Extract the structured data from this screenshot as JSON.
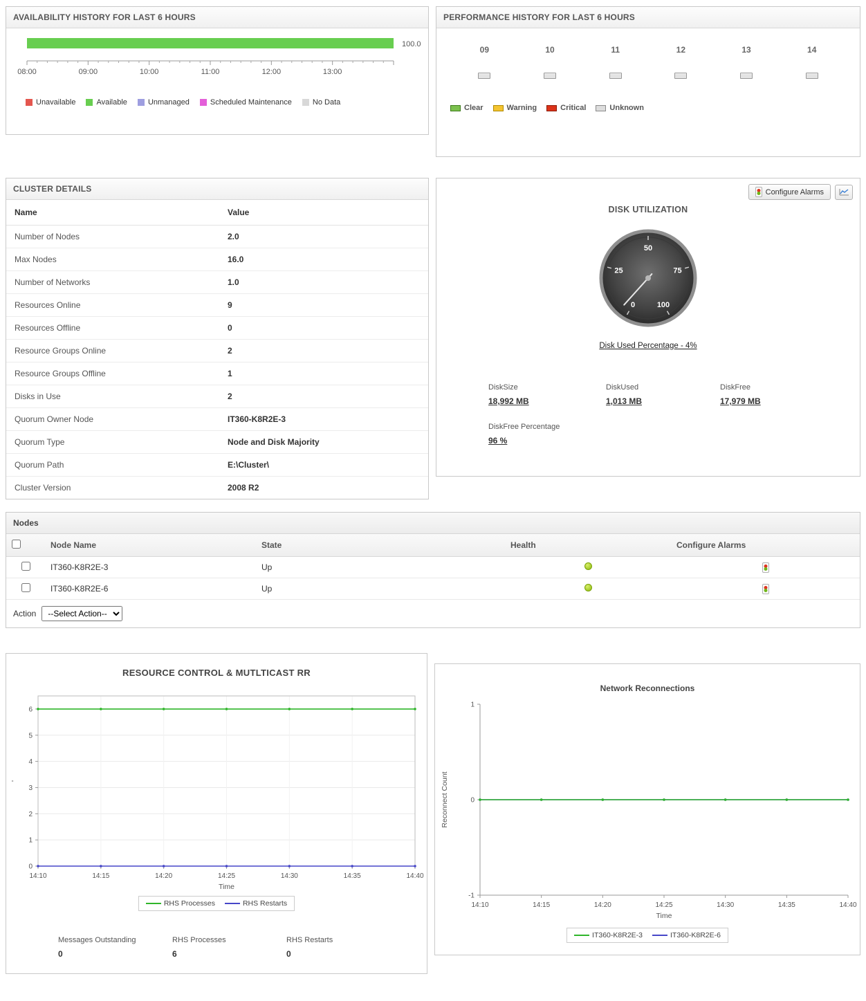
{
  "panels": {
    "cluster": {
      "title": "CLUSTER DETAILS",
      "columns": [
        "Name",
        "Value"
      ],
      "rows": [
        {
          "name": "Number of Nodes",
          "value": "2.0"
        },
        {
          "name": "Max Nodes",
          "value": "16.0"
        },
        {
          "name": "Number of Networks",
          "value": "1.0"
        },
        {
          "name": "Resources Online",
          "value": "9"
        },
        {
          "name": "Resources Offline",
          "value": "0"
        },
        {
          "name": "Resource Groups Online",
          "value": "2"
        },
        {
          "name": "Resource Groups Offline",
          "value": "1"
        },
        {
          "name": "Disks in Use",
          "value": "2"
        },
        {
          "name": "Quorum Owner Node",
          "value": "IT360-K8R2E-3"
        },
        {
          "name": "Quorum Type",
          "value": "Node and Disk Majority"
        },
        {
          "name": "Quorum Path",
          "value": "E:\\Cluster\\"
        },
        {
          "name": "Cluster Version",
          "value": "2008 R2"
        }
      ]
    },
    "disk": {
      "configure_alarms_label": "Configure Alarms",
      "stats": [
        {
          "label": "DiskSize",
          "value": "18,992 MB"
        },
        {
          "label": "DiskUsed",
          "value": "1,013 MB"
        },
        {
          "label": "DiskFree",
          "value": "17,979 MB"
        },
        {
          "label": "DiskFree Percentage",
          "value": "96 %"
        }
      ]
    },
    "nodes": {
      "title": "Nodes",
      "columns": [
        "Node Name",
        "State",
        "Health",
        "Configure Alarms"
      ],
      "rows": [
        {
          "name": "IT360-K8R2E-3",
          "state": "Up",
          "health": "up"
        },
        {
          "name": "IT360-K8R2E-6",
          "state": "Up",
          "health": "up"
        }
      ],
      "action_label": "Action",
      "action_selected": "--Select Action--"
    },
    "resource": {
      "stats": [
        {
          "label": "Messages Outstanding",
          "value": "0"
        },
        {
          "label": "RHS Processes",
          "value": "6"
        },
        {
          "label": "RHS Restarts",
          "value": "0"
        }
      ]
    }
  },
  "chart_data": [
    {
      "id": "availability",
      "type": "bar",
      "title": "AVAILABILITY HISTORY FOR LAST 6 HOURS",
      "orientation": "horizontal",
      "series": [
        {
          "name": "Available",
          "value": 100.0
        }
      ],
      "value_label": "100.0",
      "bar_color": "#68ce50",
      "x_ticks": [
        "08:00",
        "09:00",
        "10:00",
        "11:00",
        "12:00",
        "13:00"
      ],
      "x_range_hours": 6,
      "legend": [
        {
          "label": "Unavailable",
          "color": "#e4564e"
        },
        {
          "label": "Available",
          "color": "#68ce50"
        },
        {
          "label": "Unmanaged",
          "color": "#9e9ee0"
        },
        {
          "label": "Scheduled Maintenance",
          "color": "#e45fd9"
        },
        {
          "label": "No Data",
          "color": "#d8d8d8"
        }
      ]
    },
    {
      "id": "performance",
      "type": "heatmap",
      "title": "PERFORMANCE HISTORY FOR LAST 6 HOURS",
      "hours": [
        "09",
        "10",
        "11",
        "12",
        "13",
        "14"
      ],
      "cells": [
        "unknown",
        "unknown",
        "unknown",
        "unknown",
        "unknown",
        "unknown"
      ],
      "legend": [
        {
          "label": "Clear",
          "color": "#7cc14e",
          "border": "#3c7a1a"
        },
        {
          "label": "Warning",
          "color": "#f4c430",
          "border": "#b08900"
        },
        {
          "label": "Critical",
          "color": "#dc3319",
          "border": "#8c1a08"
        },
        {
          "label": "Unknown",
          "color": "#dddddd",
          "border": "#8a8a8a"
        }
      ]
    },
    {
      "id": "disk-gauge",
      "type": "gauge",
      "title": "DISK UTILIZATION",
      "value": 4,
      "min": 0,
      "max": 100,
      "ticks": [
        0,
        25,
        50,
        75,
        100
      ],
      "caption": "Disk Used Percentage - 4%"
    },
    {
      "id": "resource",
      "type": "line",
      "title": "RESOURCE CONTROL & MUTLTICAST RR",
      "xlabel": "Time",
      "ylabel": "'",
      "ylim": [
        0,
        6.5
      ],
      "yticks": [
        0,
        1,
        2,
        3,
        4,
        5,
        6
      ],
      "x": [
        "14:10",
        "14:15",
        "14:20",
        "14:25",
        "14:30",
        "14:35",
        "14:40"
      ],
      "series": [
        {
          "name": "RHS Processes",
          "color": "#2fb52a",
          "values": [
            6,
            6,
            6,
            6,
            6,
            6,
            6
          ]
        },
        {
          "name": "RHS Restarts",
          "color": "#4646c8",
          "values": [
            0,
            0,
            0,
            0,
            0,
            0,
            0
          ]
        }
      ],
      "legend_position": "bottom"
    },
    {
      "id": "network",
      "type": "line",
      "title": "Network Reconnections",
      "xlabel": "Time",
      "ylabel": "Reconnect Count",
      "ylim": [
        -1,
        1
      ],
      "yticks": [
        -1,
        0,
        1
      ],
      "x": [
        "14:10",
        "14:15",
        "14:20",
        "14:25",
        "14:30",
        "14:35",
        "14:40"
      ],
      "series": [
        {
          "name": "IT360-K8R2E-3",
          "color": "#2fb52a",
          "values": [
            0,
            0,
            0,
            0,
            0,
            0,
            0
          ]
        },
        {
          "name": "IT360-K8R2E-6",
          "color": "#4646c8",
          "values": [
            0,
            0,
            0,
            0,
            0,
            0,
            0
          ]
        }
      ],
      "legend_position": "bottom"
    }
  ]
}
